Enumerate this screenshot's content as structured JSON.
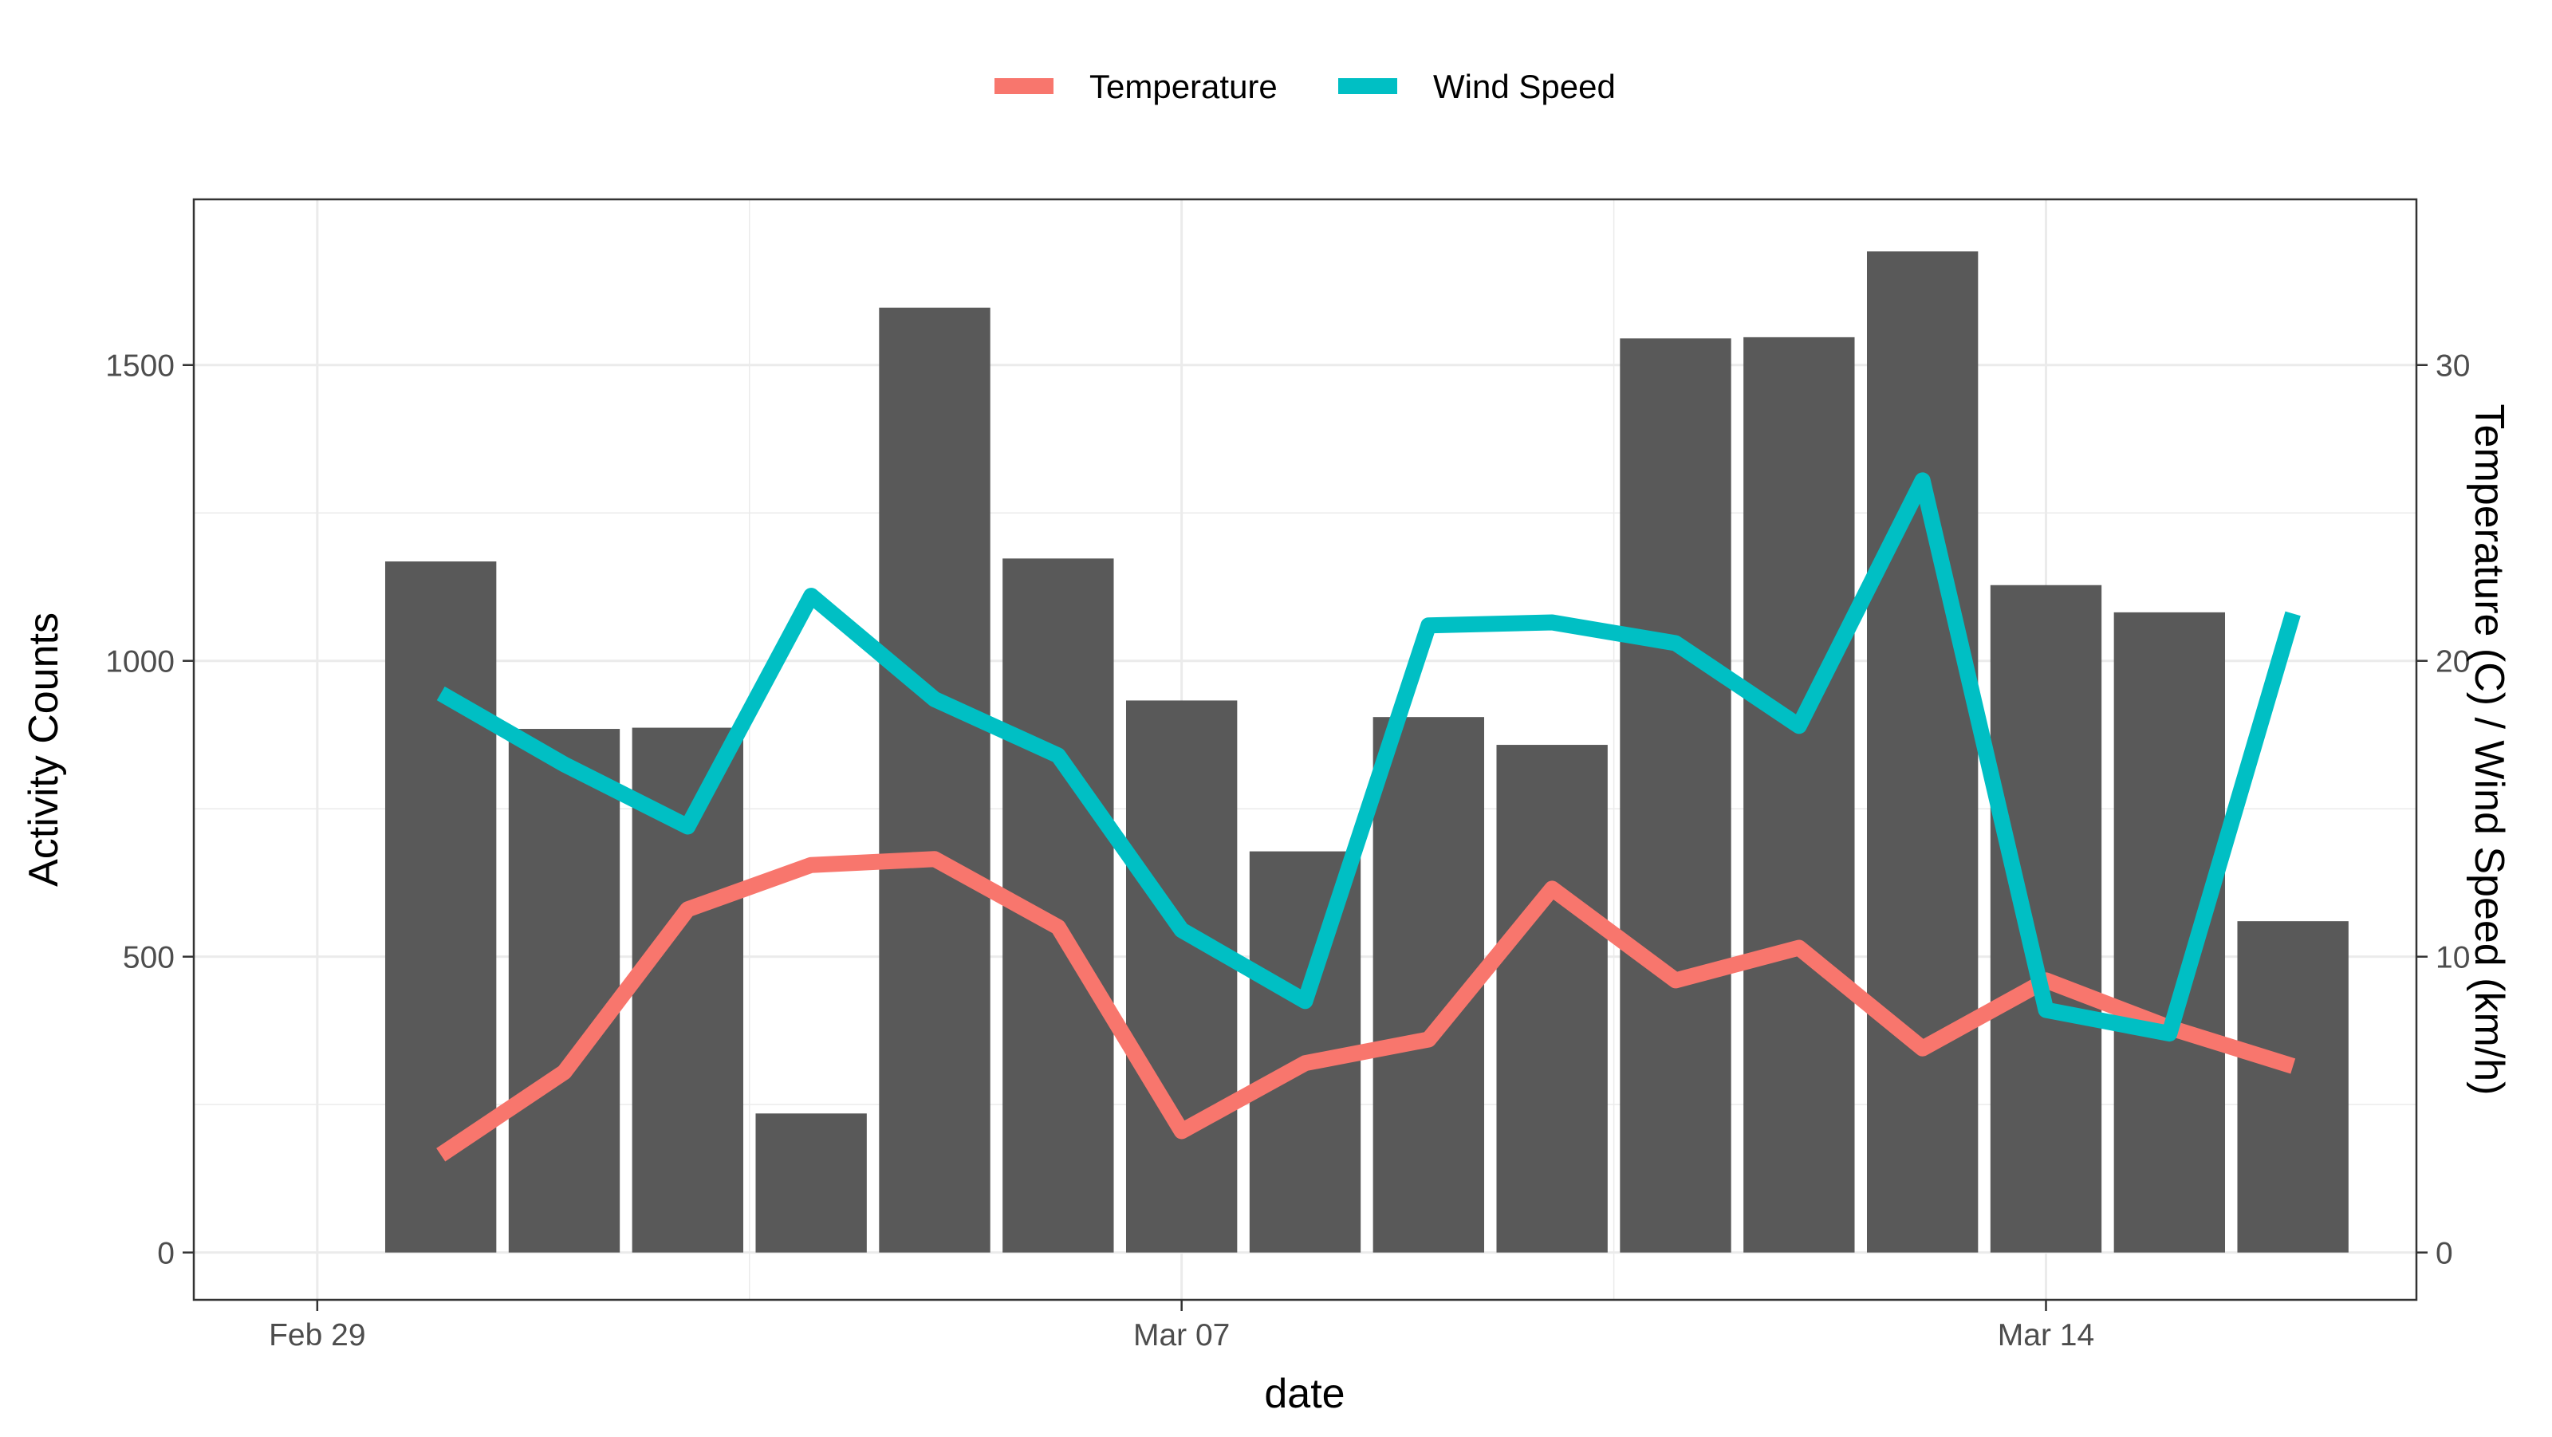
{
  "chart_data": {
    "type": "bar",
    "x_type": "date",
    "x_ticks": [
      "Feb 29",
      "Mar 07",
      "Mar 14"
    ],
    "xlim": [
      "2024-02-28",
      "2024-03-17"
    ],
    "xlabel": "date",
    "ylabel_left": "Activity Counts",
    "ylabel_right": "Temperature (C) / Wind Speed (km/h)",
    "ylim_left": [
      -80,
      1780
    ],
    "ylim_right": [
      -1.6,
      35.6
    ],
    "yticks_left": [
      "0",
      "500",
      "1000",
      "1500"
    ],
    "yticks_right": [
      "0",
      "10",
      "20",
      "30"
    ],
    "grid": true,
    "legend_position": "top",
    "dates": [
      "2024-03-01",
      "2024-03-02",
      "2024-03-03",
      "2024-03-04",
      "2024-03-05",
      "2024-03-06",
      "2024-03-07",
      "2024-03-08",
      "2024-03-09",
      "2024-03-10",
      "2024-03-11",
      "2024-03-12",
      "2024-03-13",
      "2024-03-14",
      "2024-03-15",
      "2024-03-16"
    ],
    "activity_counts": [
      1168,
      885,
      887,
      235,
      1597,
      1173,
      933,
      678,
      905,
      858,
      1545,
      1547,
      1692,
      1128,
      1082,
      560
    ],
    "series": [
      {
        "name": "Temperature",
        "axis": "right",
        "color": "#F8766D",
        "values": [
          3.3,
          6.1,
          11.6,
          13.1,
          13.3,
          11.0,
          4.1,
          6.4,
          7.2,
          12.3,
          9.2,
          10.3,
          6.9,
          9.2,
          7.6,
          6.3
        ]
      },
      {
        "name": "Wind Speed",
        "axis": "right",
        "color": "#00BFC4",
        "values": [
          18.9,
          16.5,
          14.4,
          22.2,
          18.7,
          16.8,
          10.9,
          8.5,
          21.2,
          21.3,
          20.6,
          17.8,
          26.1,
          8.2,
          7.4,
          21.6
        ]
      }
    ],
    "bar_color": "#595959"
  }
}
